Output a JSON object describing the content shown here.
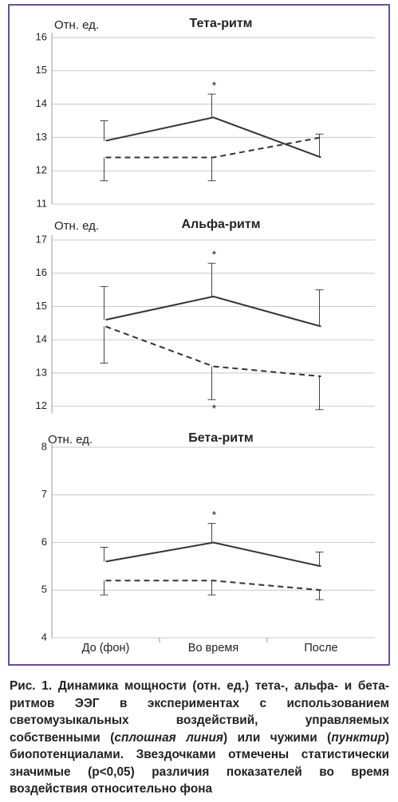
{
  "chart_data": [
    {
      "type": "line",
      "title": "Тета-ритм",
      "y_label": "Отн. ед.",
      "categories": [
        null,
        null,
        null
      ],
      "ylim": [
        11,
        16
      ],
      "yticks": [
        11,
        12,
        13,
        14,
        15,
        16
      ],
      "grid": true,
      "error_direction": [
        "up",
        "down"
      ],
      "series": [
        {
          "color": "#333333",
          "style": "solid",
          "values": [
            12.9,
            13.6,
            12.4
          ],
          "errors": [
            0.6,
            0.7,
            0.7
          ]
        },
        {
          "color": "#333333",
          "style": "dashed",
          "values": [
            12.4,
            12.4,
            13.0
          ],
          "errors": [
            0.7,
            0.7,
            null
          ]
        }
      ],
      "annotations": [
        {
          "text": "*",
          "series": 0,
          "index": 1
        }
      ]
    },
    {
      "type": "line",
      "title": "Альфа-ритм",
      "y_label": "Отн. ед.",
      "categories": [
        null,
        null,
        null
      ],
      "ylim": [
        11.8,
        17
      ],
      "yticks": [
        12,
        13,
        14,
        15,
        16,
        17
      ],
      "grid": true,
      "error_direction": [
        "up",
        "down"
      ],
      "series": [
        {
          "color": "#333333",
          "style": "solid",
          "values": [
            14.6,
            15.3,
            14.4
          ],
          "errors": [
            1.0,
            1.0,
            1.1
          ]
        },
        {
          "color": "#333333",
          "style": "dashed",
          "values": [
            14.4,
            13.2,
            12.9
          ],
          "errors": [
            1.1,
            1.0,
            1.0
          ]
        }
      ],
      "annotations": [
        {
          "text": "*",
          "series": 0,
          "index": 1
        },
        {
          "text": "*",
          "series": 1,
          "index": 1
        }
      ]
    },
    {
      "type": "line",
      "title": "Бета-ритм",
      "y_label": "Отн. ед.",
      "categories": [
        "До (фон)",
        "Во время",
        "После"
      ],
      "ylim": [
        4,
        8
      ],
      "yticks": [
        4,
        5,
        6,
        7,
        8
      ],
      "grid": true,
      "error_direction": [
        "up",
        "down"
      ],
      "series": [
        {
          "color": "#333333",
          "style": "solid",
          "values": [
            5.6,
            6.0,
            5.5
          ],
          "errors": [
            0.3,
            0.4,
            0.3
          ]
        },
        {
          "color": "#333333",
          "style": "dashed",
          "values": [
            5.2,
            5.2,
            5.0
          ],
          "errors": [
            0.3,
            0.3,
            0.2
          ]
        }
      ],
      "annotations": [
        {
          "text": "*",
          "series": 0,
          "index": 1
        }
      ]
    }
  ],
  "caption": {
    "parts": [
      {
        "text": "Рис. 1. Динамика мощности (отн. ед.) тета-, альфа- и бета-ритмов ЭЭГ в экспериментах с использованием светомузыкальных воздействий, управляемых собственными (",
        "italic": false
      },
      {
        "text": "сплошная линия",
        "italic": true
      },
      {
        "text": ") или чужими (",
        "italic": false
      },
      {
        "text": "пунктир",
        "italic": true
      },
      {
        "text": ") биопотенциалами. Звездочками отмечены статистически значимые (p<0,05) различия показателей во время воздействия относительно фона",
        "italic": false
      }
    ]
  }
}
